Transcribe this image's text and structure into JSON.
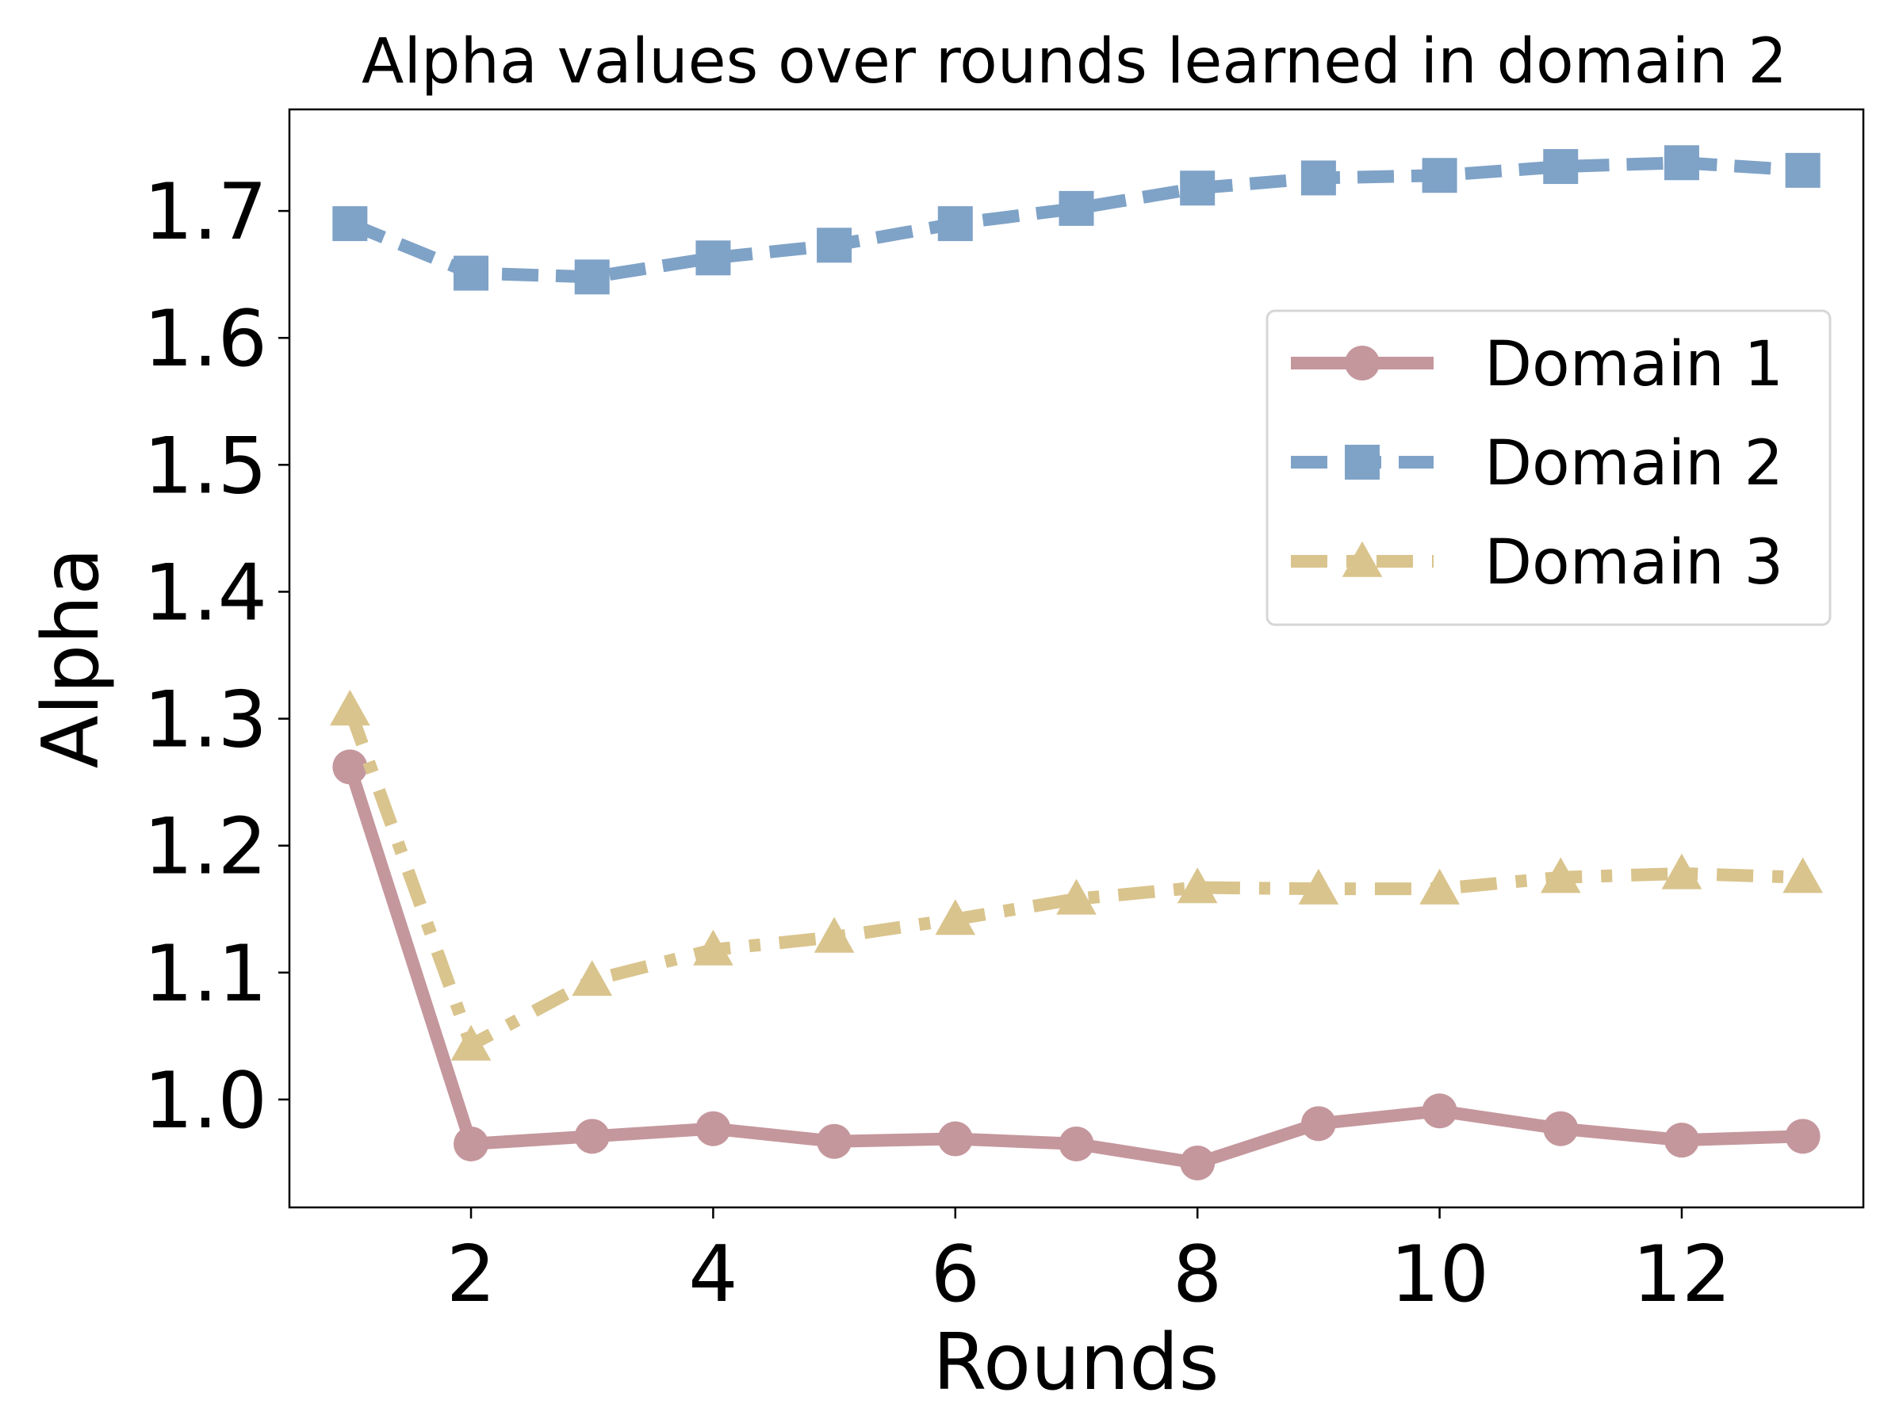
{
  "chart_data": {
    "type": "line",
    "title": "Alpha values over rounds learned in domain 2",
    "xlabel": "Rounds",
    "ylabel": "Alpha",
    "xlim": [
      0.5,
      13.5
    ],
    "ylim": [
      0.915,
      1.78
    ],
    "xticks": [
      2,
      4,
      6,
      8,
      10,
      12
    ],
    "yticks": [
      1.0,
      1.1,
      1.2,
      1.3,
      1.4,
      1.5,
      1.6,
      1.7
    ],
    "ytick_labels": [
      "1.0",
      "1.1",
      "1.2",
      "1.3",
      "1.4",
      "1.5",
      "1.6",
      "1.7"
    ],
    "grid": false,
    "legend_position": "upper-right",
    "x": [
      1,
      2,
      3,
      4,
      5,
      6,
      7,
      8,
      9,
      10,
      11,
      12,
      13
    ],
    "series": [
      {
        "name": "Domain 1",
        "color": "#c4979d",
        "marker": "circle",
        "linestyle": "solid",
        "values": [
          1.262,
          0.965,
          0.971,
          0.977,
          0.967,
          0.969,
          0.965,
          0.95,
          0.981,
          0.991,
          0.977,
          0.968,
          0.971
        ]
      },
      {
        "name": "Domain 2",
        "color": "#7fa2c7",
        "marker": "square",
        "linestyle": "dashed",
        "values": [
          1.69,
          1.651,
          1.648,
          1.663,
          1.673,
          1.69,
          1.702,
          1.718,
          1.726,
          1.728,
          1.735,
          1.738,
          1.732
        ]
      },
      {
        "name": "Domain 3",
        "color": "#d9c48d",
        "marker": "triangle",
        "linestyle": "dashdot",
        "values": [
          1.307,
          1.043,
          1.094,
          1.118,
          1.128,
          1.142,
          1.158,
          1.167,
          1.166,
          1.166,
          1.175,
          1.178,
          1.175
        ]
      }
    ]
  }
}
